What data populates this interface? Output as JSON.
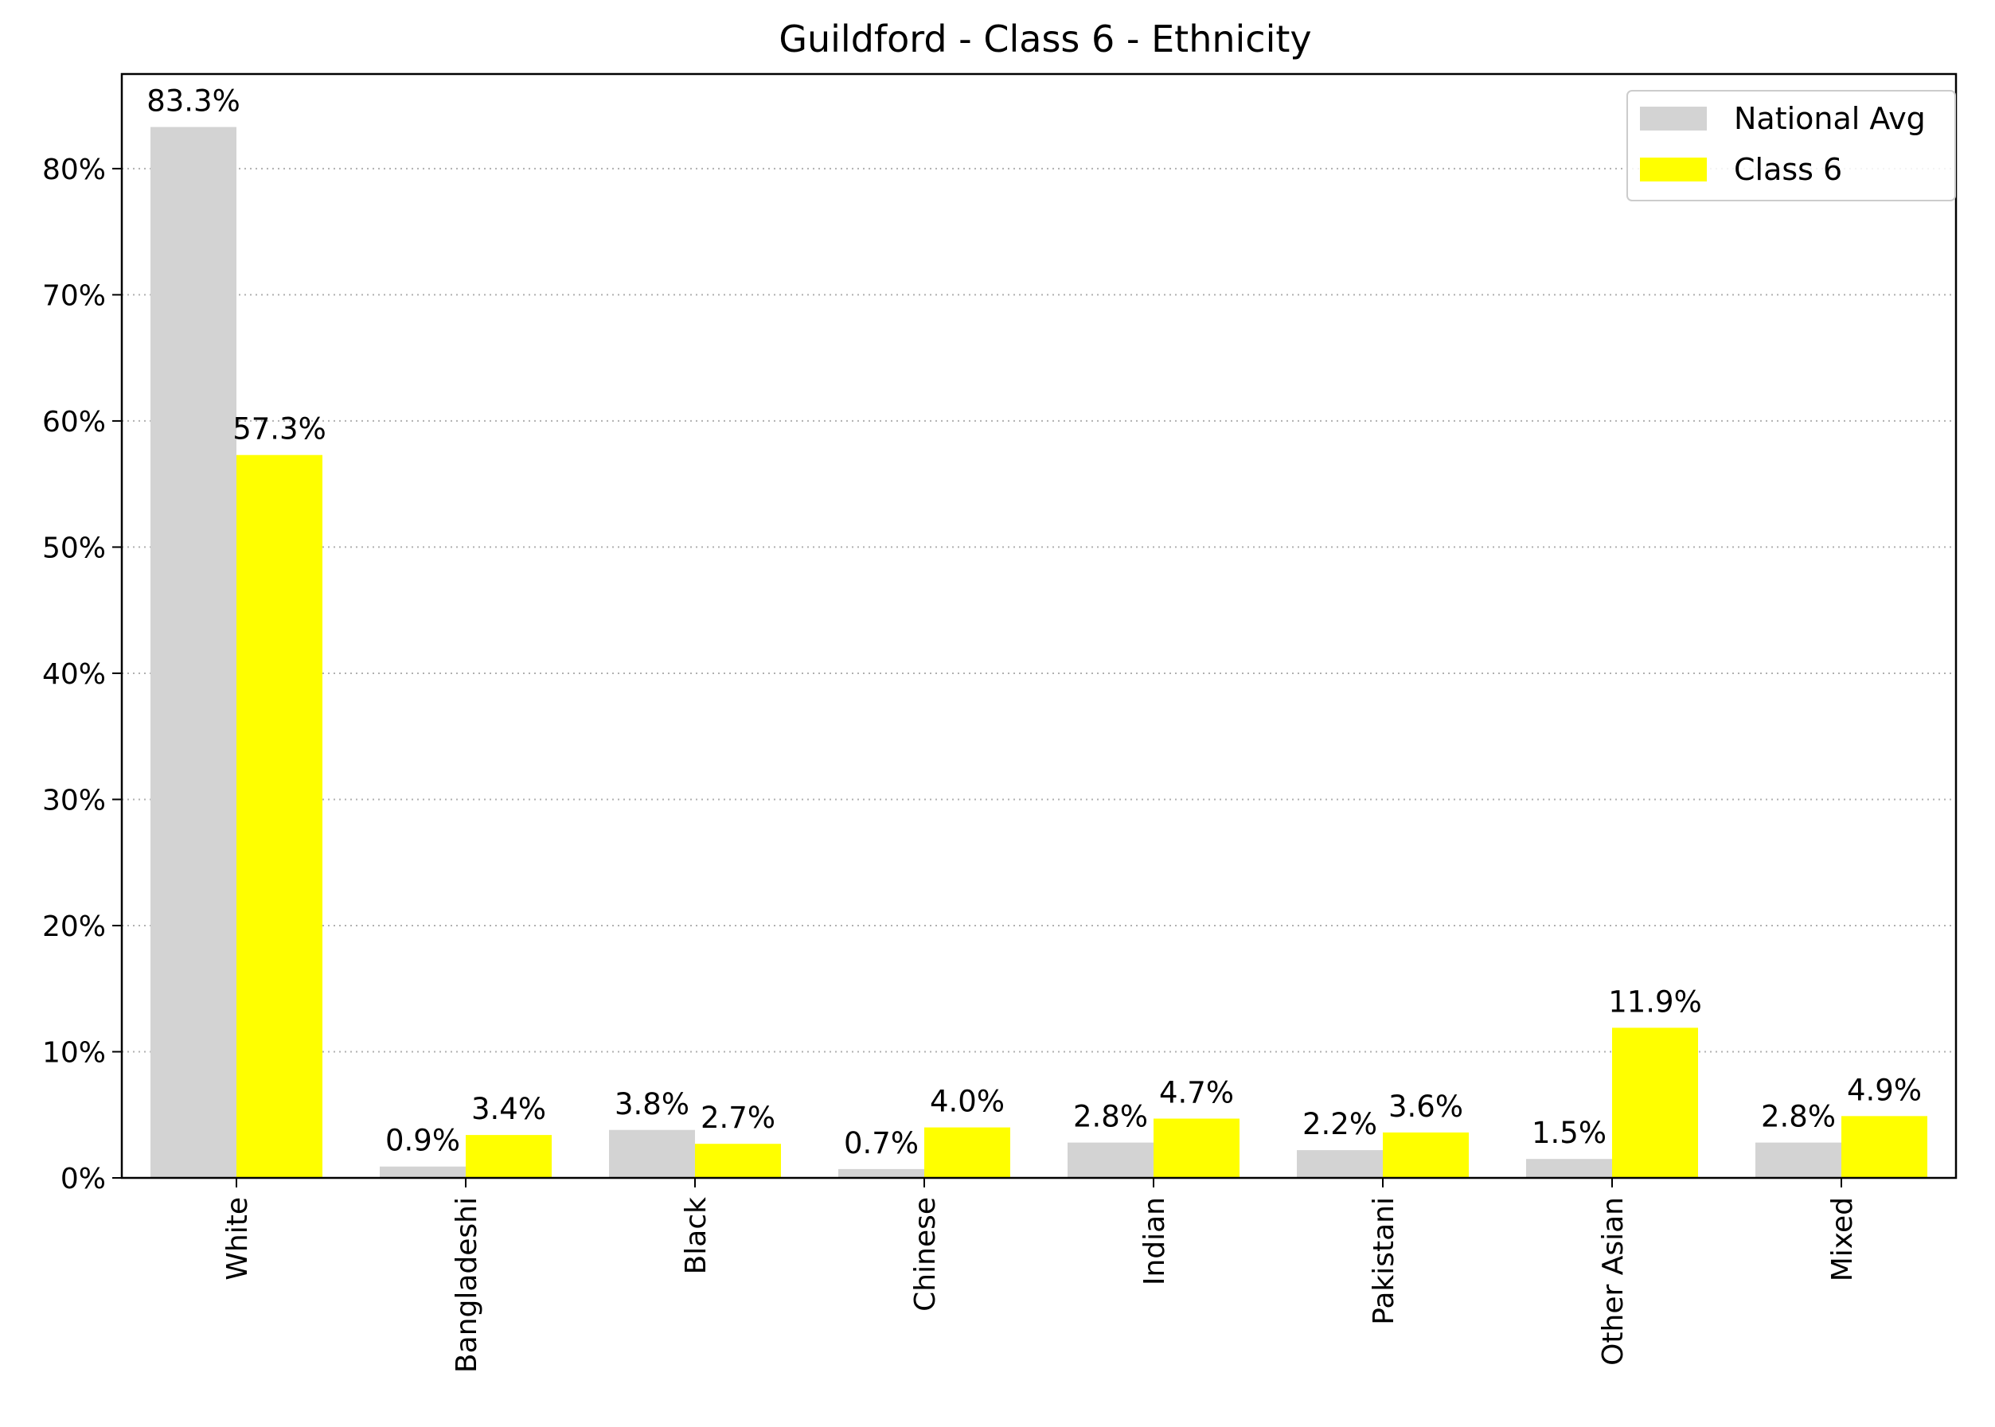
{
  "chart_data": {
    "type": "bar",
    "title": "Guildford - Class 6 - Ethnicity",
    "xlabel": "",
    "ylabel": "",
    "categories": [
      "White",
      "Bangladeshi",
      "Black",
      "Chinese",
      "Indian",
      "Pakistani",
      "Other Asian",
      "Mixed"
    ],
    "series": [
      {
        "name": "National Avg",
        "color": "#d3d3d3",
        "values": [
          83.3,
          0.9,
          3.8,
          0.7,
          2.8,
          2.2,
          1.5,
          2.8
        ],
        "labels": [
          "83.3%",
          "0.9%",
          "3.8%",
          "0.7%",
          "2.8%",
          "2.2%",
          "1.5%",
          "2.8%"
        ]
      },
      {
        "name": "Class 6",
        "color": "#ffff00",
        "values": [
          57.3,
          3.4,
          2.7,
          4.0,
          4.7,
          3.6,
          11.9,
          4.9
        ],
        "labels": [
          "57.3%",
          "3.4%",
          "2.7%",
          "4.0%",
          "4.7%",
          "3.6%",
          "11.9%",
          "4.9%"
        ]
      }
    ],
    "y_ticks": [
      0,
      10,
      20,
      30,
      40,
      50,
      60,
      70,
      80
    ],
    "y_tick_labels": [
      "0%",
      "10%",
      "20%",
      "30%",
      "40%",
      "50%",
      "60%",
      "70%",
      "80%"
    ],
    "ylim": [
      0,
      87.5
    ],
    "grid": "horizontal-dotted",
    "legend": "top-right"
  }
}
